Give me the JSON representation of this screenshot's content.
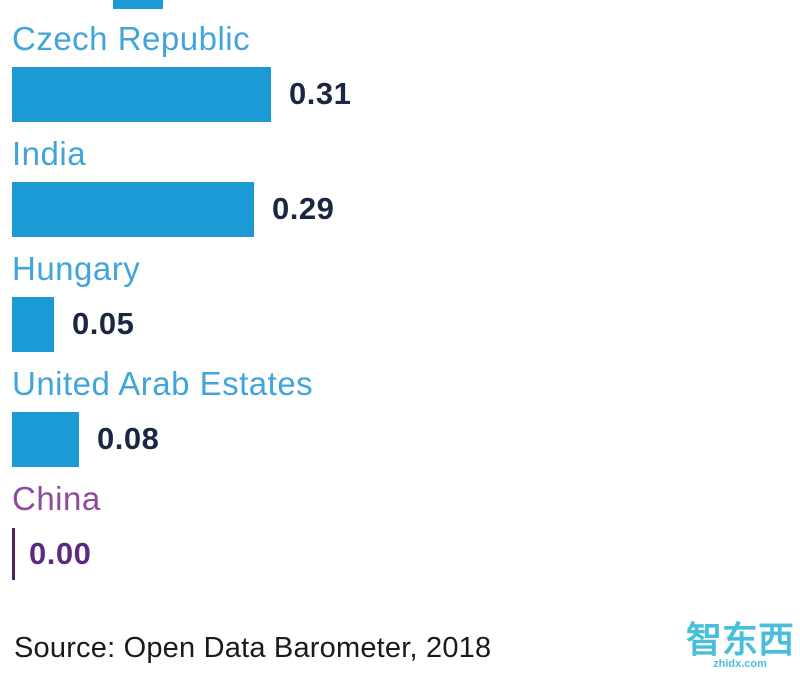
{
  "chart_data": {
    "type": "bar",
    "orientation": "horizontal",
    "categories": [
      "Czech Republic",
      "India",
      "Hungary",
      "United Arab Estates",
      "China"
    ],
    "values": [
      0.31,
      0.29,
      0.05,
      0.08,
      0.0
    ],
    "value_labels": [
      "0.31",
      "0.29",
      "0.05",
      "0.08",
      "0.00"
    ],
    "row_styles": [
      "blue",
      "blue",
      "blue",
      "blue",
      "purple"
    ],
    "xlim": [
      0,
      0.31
    ],
    "title": "",
    "xlabel": "",
    "ylabel": "",
    "source": "Source: Open Data Barometer, 2018",
    "colors": {
      "bar_blue": "#1c9ad6",
      "label_blue": "#41a5da",
      "value_dark": "#1a2742",
      "label_purple": "#8e4a9e",
      "value_purple": "#5b2b84",
      "bar_purple": "#4f2460"
    }
  },
  "watermark": {
    "text": "智东西",
    "subtext": "zhidx.com"
  }
}
